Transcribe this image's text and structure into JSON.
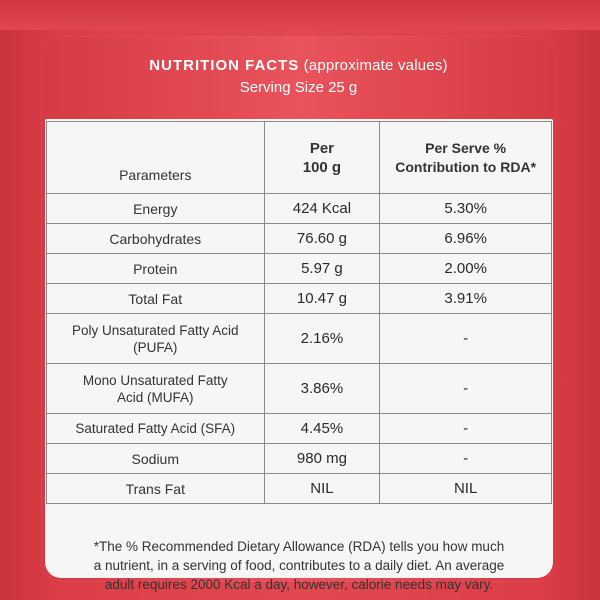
{
  "header": {
    "title": "NUTRITION FACTS",
    "subtitle": "(approximate values)",
    "serving": "Serving Size 25 g"
  },
  "table": {
    "headers": {
      "parameters": "Parameters",
      "per_line1": "Per",
      "per_line2": "100 g",
      "rda_line1": "Per Serve %",
      "rda_line2": "Contribution to RDA*"
    },
    "rows": [
      {
        "param": "Energy",
        "per100": "424 Kcal",
        "rda": "5.30%"
      },
      {
        "param": "Carbohydrates",
        "per100": "76.60 g",
        "rda": "6.96%"
      },
      {
        "param": "Protein",
        "per100": "5.97 g",
        "rda": "2.00%"
      },
      {
        "param": "Total Fat",
        "per100": "10.47 g",
        "rda": "3.91%"
      },
      {
        "param_line1": "Poly Unsaturated Fatty Acid",
        "param_line2": "(PUFA)",
        "per100": "2.16%",
        "rda": "-"
      },
      {
        "param_line1": "Mono Unsaturated Fatty",
        "param_line2": "Acid (MUFA)",
        "per100": "3.86%",
        "rda": "-"
      },
      {
        "param": "Saturated Fatty Acid (SFA)",
        "per100": "4.45%",
        "rda": "-"
      },
      {
        "param": "Sodium",
        "per100": "980 mg",
        "rda": "-"
      },
      {
        "param": "Trans Fat",
        "per100": "NIL",
        "rda": "NIL"
      }
    ]
  },
  "footnote": {
    "line1": "*The % Recommended Dietary Allowance (RDA) tells you how much",
    "line2": "a nutrient, in a serving of food, contributes to a daily diet. An average",
    "line3": "adult requires 2000 Kcal a day, however, calorie needs may vary."
  },
  "colors": {
    "background_red": "#e24850",
    "card_white": "#f6f6f6",
    "text_dark": "#333333",
    "grid_line": "#8a8a8a"
  }
}
